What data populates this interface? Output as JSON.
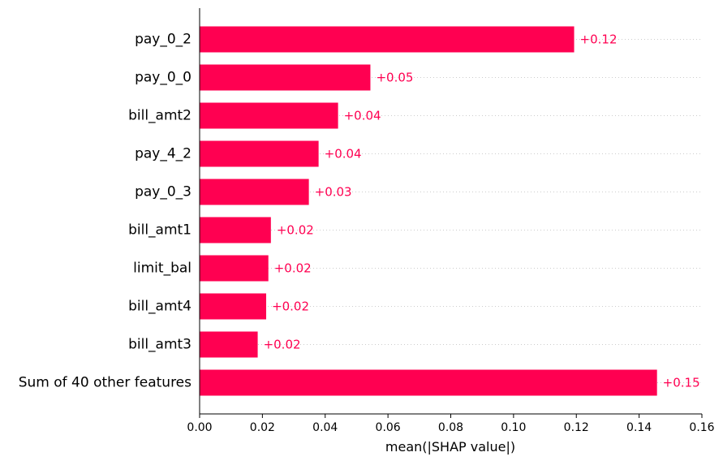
{
  "chart_data": {
    "type": "bar",
    "orientation": "horizontal",
    "title": "",
    "xlabel": "mean(|SHAP value|)",
    "ylabel": "",
    "xlim": [
      0,
      0.16
    ],
    "xticks": [
      0.0,
      0.02,
      0.04,
      0.06,
      0.08,
      0.1,
      0.12,
      0.14,
      0.16
    ],
    "xtick_labels": [
      "0.00",
      "0.02",
      "0.04",
      "0.06",
      "0.08",
      "0.10",
      "0.12",
      "0.14",
      "0.16"
    ],
    "categories": [
      "pay_0_2",
      "pay_0_0",
      "bill_amt2",
      "pay_4_2",
      "pay_0_3",
      "bill_amt1",
      "limit_bal",
      "bill_amt4",
      "bill_amt3",
      "Sum of 40 other features"
    ],
    "values": [
      0.1193,
      0.0544,
      0.0441,
      0.0379,
      0.0348,
      0.0227,
      0.0219,
      0.0212,
      0.0185,
      0.1457
    ],
    "value_labels": [
      "+0.12",
      "+0.05",
      "+0.04",
      "+0.04",
      "+0.03",
      "+0.02",
      "+0.02",
      "+0.02",
      "+0.02",
      "+0.15"
    ],
    "bar_color": "#ff0051",
    "label_color": "#ff0051",
    "grid": "dotted row guides",
    "legend": "none"
  }
}
